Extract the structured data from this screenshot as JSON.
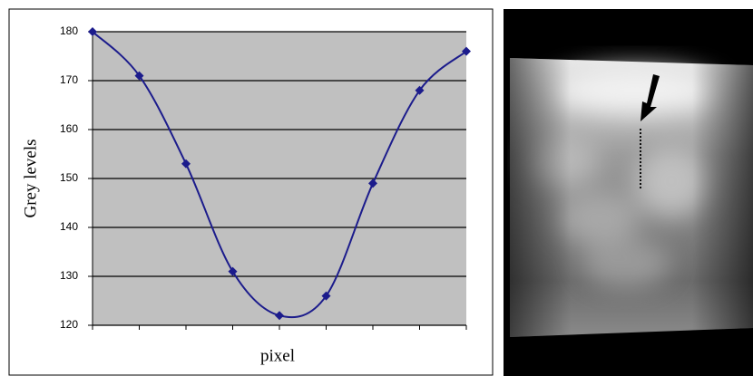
{
  "chart_data": {
    "type": "line",
    "x_label": "pixel",
    "y_label": "Grey levels",
    "categories": [
      null,
      null,
      null,
      null,
      null,
      null,
      null,
      null,
      null
    ],
    "series": [
      {
        "color": "#1c1c8c",
        "values": [
          180,
          171,
          153,
          131,
          122,
          126,
          149,
          168,
          176
        ]
      }
    ],
    "ylim": [
      120,
      180
    ],
    "yticks": [
      120,
      130,
      140,
      150,
      160,
      170,
      180
    ],
    "grid": true,
    "smooth": true
  }
}
